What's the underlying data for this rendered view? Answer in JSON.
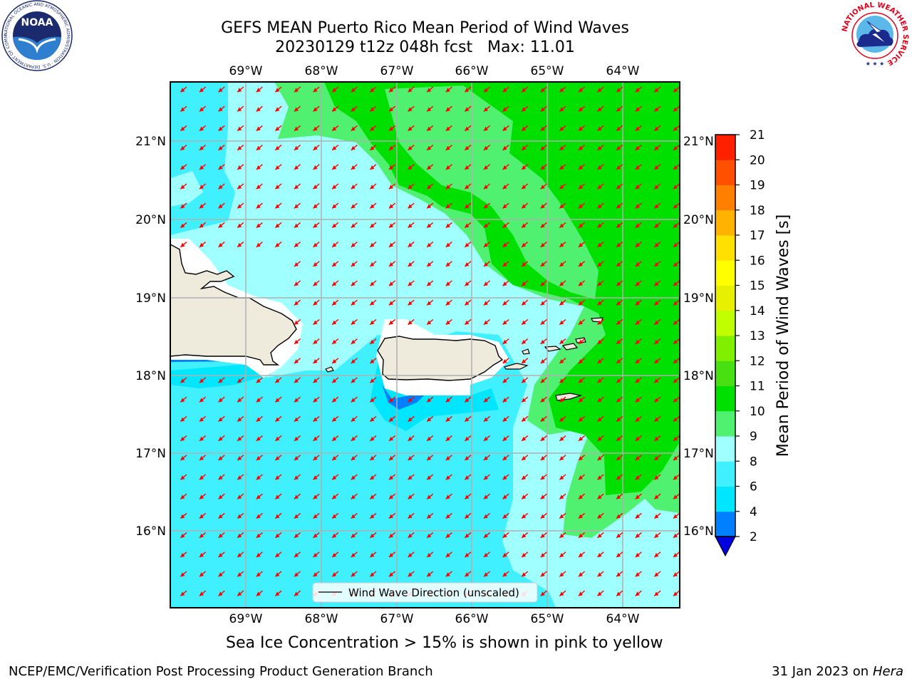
{
  "header": {
    "title_line1": "GEFS MEAN Puerto Rico Mean Period of Wind Waves",
    "title_line2": "20230129 t12z 048h fcst   Max: 11.01"
  },
  "logos": {
    "left": "noaa-logo",
    "left_text": "NOAA",
    "left_ring_text": "NATIONAL OCEANIC AND ATMOSPHERIC ADMINISTRATION · U.S. DEPARTMENT OF COMMERCE",
    "right": "nws-logo",
    "right_ring_text": "NATIONAL WEATHER SERVICE"
  },
  "map": {
    "lon_labels": [
      "69°W",
      "68°W",
      "67°W",
      "66°W",
      "65°W",
      "64°W"
    ],
    "lat_labels": [
      "21°N",
      "20°N",
      "19°N",
      "18°N",
      "17°N",
      "16°N"
    ],
    "legend_label": "Wind Wave Direction (unscaled)",
    "arrow_color": "#ff0000",
    "land_color": "#efebdc"
  },
  "colorbar": {
    "title": "Mean Period of Wind Waves [s]",
    "tick_labels": [
      "2",
      "4",
      "6",
      "8",
      "9",
      "10",
      "11",
      "12",
      "13",
      "14",
      "15",
      "16",
      "17",
      "18",
      "19",
      "20",
      "21"
    ],
    "colors": [
      "#0080ff",
      "#00e6ff",
      "#40f0ff",
      "#a0ffff",
      "#50f070",
      "#00e000",
      "#48e010",
      "#80f000",
      "#c0ff00",
      "#e6f000",
      "#ffff00",
      "#ffe000",
      "#ffb300",
      "#ff8000",
      "#ff5000",
      "#ff2000",
      "#ff0000"
    ],
    "under_color": "#0000e0"
  },
  "footer": {
    "note": "Sea Ice Concentration > 15% is shown in pink to yellow",
    "left": "NCEP/EMC/Verification Post Processing Product Generation Branch",
    "right_date": "31 Jan 2023 on ",
    "right_machine": "Hera"
  }
}
